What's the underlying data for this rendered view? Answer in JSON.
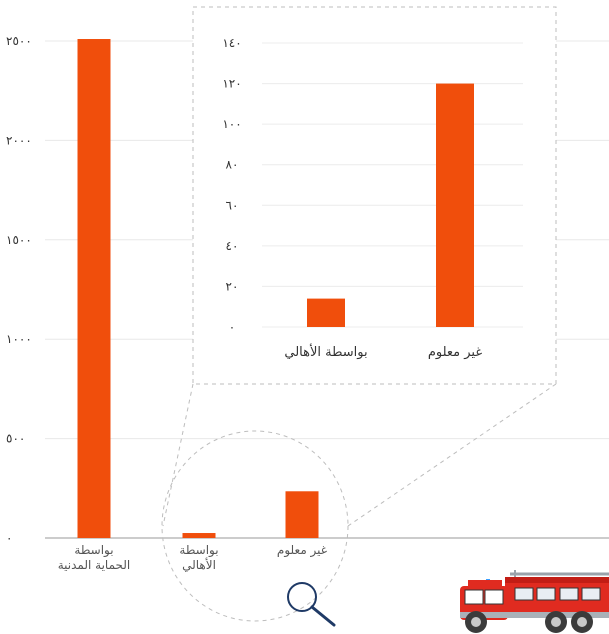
{
  "chart_data": [
    {
      "type": "bar",
      "categories": [
        "بواسطة الحماية المدنية",
        "بواسطة الأهالي",
        "غير معلوم"
      ],
      "category_lines": [
        [
          "بواسطة",
          "الحماية المدنية"
        ],
        [
          "بواسطة",
          "الأهالي"
        ],
        [
          "غير معلوم"
        ]
      ],
      "values": [
        2510,
        25,
        235
      ],
      "yticks": [
        "٠",
        "٥٠٠",
        "١٠٠٠",
        "١٥٠٠",
        "٢٠٠٠",
        "٢٥٠٠"
      ],
      "ylim": [
        0,
        2500
      ],
      "grid": true,
      "color": "#F04E0C"
    },
    {
      "type": "bar",
      "categories": [
        "بواسطة الأهالي",
        "غير معلوم"
      ],
      "values": [
        14,
        120
      ],
      "yticks": [
        "٠",
        "٢٠",
        "٤٠",
        "٦٠",
        "٨٠",
        "١٠٠",
        "١٢٠",
        "١٤٠"
      ],
      "ylim": [
        0,
        140
      ],
      "grid": true,
      "color": "#F04E0C"
    }
  ],
  "icons": [
    "magnifier-icon",
    "fire-truck-icon"
  ]
}
